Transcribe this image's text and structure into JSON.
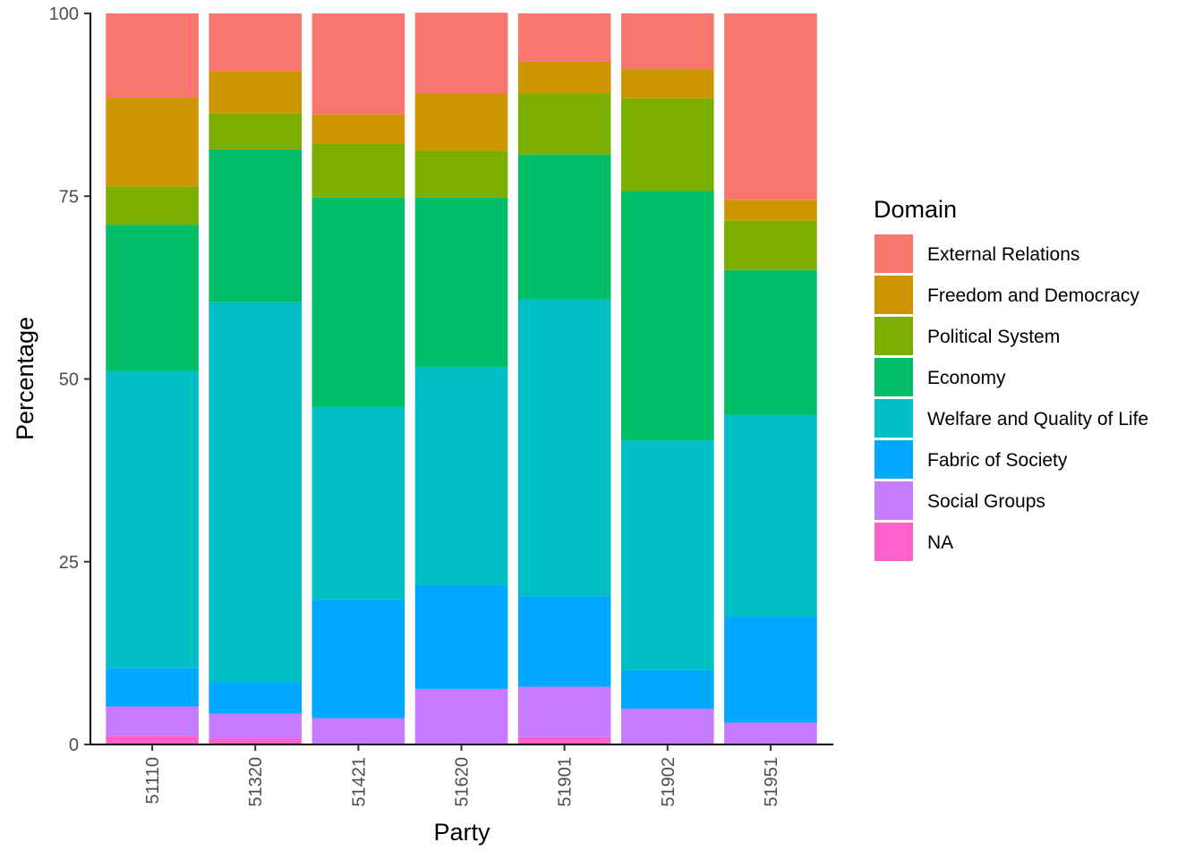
{
  "chart_data": {
    "type": "bar",
    "stacked": true,
    "xlabel": "Party",
    "ylabel": "Percentage",
    "ylim": [
      0,
      100
    ],
    "yticks": [
      0,
      25,
      50,
      75,
      100
    ],
    "categories": [
      "51110",
      "51320",
      "51421",
      "51620",
      "51901",
      "51902",
      "51951"
    ],
    "legend_title": "Domain",
    "legend_position": "right",
    "grid": false,
    "series": [
      {
        "name": "NA",
        "color": "#FF61CC",
        "values": [
          1.2,
          0.8,
          0,
          0,
          1.0,
          0,
          0
        ]
      },
      {
        "name": "Social Groups",
        "color": "#C77CFF",
        "values": [
          4.0,
          3.4,
          3.6,
          7.6,
          6.9,
          4.9,
          3.0
        ]
      },
      {
        "name": "Fabric of Society",
        "color": "#00A9FF",
        "values": [
          5.3,
          4.3,
          16.2,
          14.2,
          12.4,
          5.3,
          14.5
        ]
      },
      {
        "name": "Welfare and Quality of Life",
        "color": "#00BFC4",
        "values": [
          40.6,
          52.0,
          26.4,
          29.8,
          40.6,
          31.4,
          27.6
        ]
      },
      {
        "name": "Economy",
        "color": "#00BE67",
        "values": [
          20.0,
          20.9,
          28.6,
          23.2,
          19.8,
          34.1,
          19.8
        ]
      },
      {
        "name": "Political System",
        "color": "#7CAE00",
        "values": [
          5.2,
          4.9,
          7.4,
          6.4,
          8.4,
          12.7,
          6.8
        ]
      },
      {
        "name": "Freedom and Democracy",
        "color": "#CD9600",
        "values": [
          12.2,
          5.8,
          4.0,
          7.9,
          4.3,
          4.0,
          2.8
        ]
      },
      {
        "name": "External Relations",
        "color": "#F8766D",
        "values": [
          11.5,
          7.9,
          13.8,
          11.0,
          6.6,
          7.6,
          25.5
        ]
      }
    ],
    "legend_order": [
      "External Relations",
      "Freedom and Democracy",
      "Political System",
      "Economy",
      "Welfare and Quality of Life",
      "Fabric of Society",
      "Social Groups",
      "NA"
    ]
  }
}
